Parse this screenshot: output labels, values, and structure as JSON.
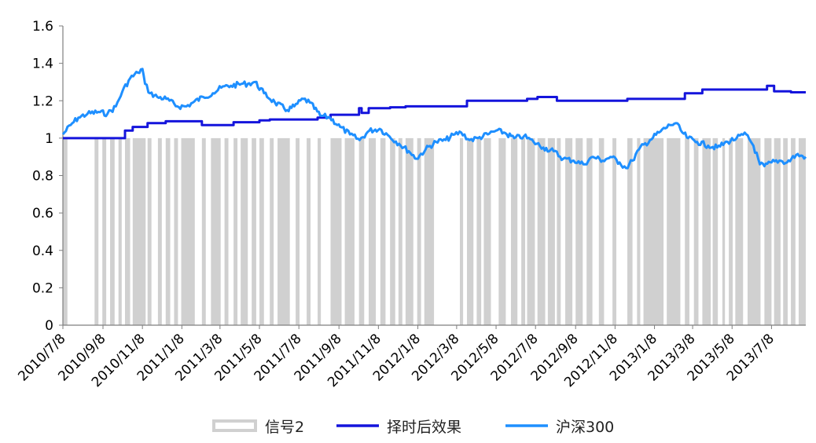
{
  "chart_data": {
    "type": "line",
    "title": "",
    "xlabel": "",
    "ylabel": "",
    "ylim": [
      0,
      1.6
    ],
    "yticks": [
      "0",
      "0.2",
      "0.4",
      "0.6",
      "0.8",
      "1",
      "1.2",
      "1.4",
      "1.6"
    ],
    "xticks": [
      "2010/7/8",
      "2010/9/8",
      "2010/11/8",
      "2011/1/8",
      "2011/3/8",
      "2011/5/8",
      "2011/7/8",
      "2011/9/8",
      "2011/11/8",
      "2012/1/8",
      "2012/3/8",
      "2012/5/8",
      "2012/7/8",
      "2012/9/8",
      "2012/11/8",
      "2013/1/8",
      "2013/3/8",
      "2013/5/8",
      "2013/7/8"
    ],
    "x_range": [
      "2010/7/8",
      "2013/8/30"
    ],
    "grid": false,
    "legend_position": "bottom",
    "colors": {
      "signal": "#d0d0d0",
      "timing": "#1414dc",
      "hs300": "#1e8fff"
    },
    "series": [
      {
        "name": "信号2",
        "kind": "step-bar",
        "value_when_on": 1,
        "on_intervals": [
          [
            "2010/7/8",
            "2010/7/15"
          ],
          [
            "2010/8/26",
            "2010/9/1"
          ],
          [
            "2010/9/7",
            "2010/9/13"
          ],
          [
            "2010/9/19",
            "2010/9/26"
          ],
          [
            "2010/10/2",
            "2010/10/7"
          ],
          [
            "2010/10/12",
            "2010/10/20"
          ],
          [
            "2010/10/24",
            "2010/11/13"
          ],
          [
            "2010/11/16",
            "2010/11/22"
          ],
          [
            "2010/12/2",
            "2010/12/8"
          ],
          [
            "2010/12/14",
            "2010/12/21"
          ],
          [
            "2010/12/27",
            "2011/1/2"
          ],
          [
            "2011/1/7",
            "2011/1/28"
          ],
          [
            "2011/2/8",
            "2011/2/14"
          ],
          [
            "2011/2/22",
            "2011/3/9"
          ],
          [
            "2011/3/15",
            "2011/3/21"
          ],
          [
            "2011/3/29",
            "2011/4/4"
          ],
          [
            "2011/4/9",
            "2011/4/20"
          ],
          [
            "2011/4/26",
            "2011/5/3"
          ],
          [
            "2011/5/8",
            "2011/5/15"
          ],
          [
            "2011/5/24",
            "2011/5/30"
          ],
          [
            "2011/6/5",
            "2011/6/24"
          ],
          [
            "2011/7/3",
            "2011/7/9"
          ],
          [
            "2011/7/20",
            "2011/7/26"
          ],
          [
            "2011/8/6",
            "2011/8/11"
          ],
          [
            "2011/8/26",
            "2011/9/12"
          ],
          [
            "2011/9/17",
            "2011/10/2"
          ],
          [
            "2011/10/9",
            "2011/10/17"
          ],
          [
            "2011/10/24",
            "2011/11/4"
          ],
          [
            "2011/11/11",
            "2011/11/19"
          ],
          [
            "2011/11/26",
            "2011/12/4"
          ],
          [
            "2011/12/9",
            "2011/12/15"
          ],
          [
            "2011/12/20",
            "2012/1/1"
          ],
          [
            "2012/1/7",
            "2012/1/13"
          ],
          [
            "2012/1/18",
            "2012/2/2"
          ],
          [
            "2012/3/13",
            "2012/3/18"
          ],
          [
            "2012/3/24",
            "2012/4/3"
          ],
          [
            "2012/4/8",
            "2012/4/15"
          ],
          [
            "2012/4/19",
            "2012/4/30"
          ],
          [
            "2012/5/12",
            "2012/5/23"
          ],
          [
            "2012/5/31",
            "2012/6/10"
          ],
          [
            "2012/6/16",
            "2012/6/22"
          ],
          [
            "2012/6/25",
            "2012/7/7"
          ],
          [
            "2012/7/11",
            "2012/7/23"
          ],
          [
            "2012/7/27",
            "2012/8/7"
          ],
          [
            "2012/8/10",
            "2012/8/16"
          ],
          [
            "2012/8/23",
            "2012/9/3"
          ],
          [
            "2012/9/8",
            "2012/9/19"
          ],
          [
            "2012/9/25",
            "2012/10/4"
          ],
          [
            "2012/10/14",
            "2012/10/22"
          ],
          [
            "2012/11/4",
            "2012/11/10"
          ],
          [
            "2012/11/27",
            "2012/12/5"
          ],
          [
            "2012/12/12",
            "2012/12/17"
          ],
          [
            "2012/12/22",
            "2013/1/22"
          ],
          [
            "2013/1/27",
            "2013/2/17"
          ],
          [
            "2013/2/24",
            "2013/3/3"
          ],
          [
            "2013/3/10",
            "2013/3/17"
          ],
          [
            "2013/3/23",
            "2013/4/5"
          ],
          [
            "2013/4/8",
            "2013/4/16"
          ],
          [
            "2013/4/23",
            "2013/4/27"
          ],
          [
            "2013/5/3",
            "2013/5/9"
          ],
          [
            "2013/5/13",
            "2013/5/25"
          ],
          [
            "2013/6/1",
            "2013/6/21"
          ],
          [
            "2013/6/27",
            "2013/7/8"
          ],
          [
            "2013/7/12",
            "2013/7/22"
          ],
          [
            "2013/7/26",
            "2013/8/2"
          ],
          [
            "2013/8/7",
            "2013/8/14"
          ],
          [
            "2013/8/19",
            "2013/8/30"
          ]
        ]
      },
      {
        "name": "择时后效果",
        "kind": "line",
        "x": [
          "2010/7/8",
          "2010/10/12",
          "2010/10/12",
          "2010/10/24",
          "2010/10/24",
          "2010/11/16",
          "2010/11/16",
          "2010/12/14",
          "2010/12/14",
          "2011/2/8",
          "2011/2/8",
          "2011/3/29",
          "2011/3/29",
          "2011/5/8",
          "2011/5/8",
          "2011/5/24",
          "2011/5/24",
          "2011/8/6",
          "2011/8/6",
          "2011/8/26",
          "2011/8/26",
          "2011/10/9",
          "2011/10/9",
          "2011/10/13",
          "2011/10/13",
          "2011/10/24",
          "2011/10/24",
          "2011/11/26",
          "2011/11/26",
          "2011/12/20",
          "2011/12/20",
          "2012/3/24",
          "2012/3/24",
          "2012/6/25",
          "2012/6/25",
          "2012/7/11",
          "2012/7/11",
          "2012/8/10",
          "2012/8/10",
          "2012/11/27",
          "2012/11/27",
          "2013/2/24",
          "2013/2/24",
          "2013/3/23",
          "2013/3/23",
          "2013/7/1",
          "2013/7/1",
          "2013/7/12",
          "2013/7/12",
          "2013/8/7",
          "2013/8/7",
          "2013/8/30"
        ],
        "values": [
          1.0,
          1.0,
          1.04,
          1.04,
          1.06,
          1.06,
          1.08,
          1.08,
          1.09,
          1.09,
          1.07,
          1.07,
          1.085,
          1.085,
          1.095,
          1.095,
          1.1,
          1.1,
          1.11,
          1.11,
          1.125,
          1.125,
          1.16,
          1.16,
          1.135,
          1.135,
          1.16,
          1.16,
          1.165,
          1.165,
          1.17,
          1.17,
          1.2,
          1.2,
          1.21,
          1.21,
          1.22,
          1.22,
          1.2,
          1.2,
          1.21,
          1.21,
          1.24,
          1.24,
          1.26,
          1.26,
          1.28,
          1.28,
          1.25,
          1.25,
          1.245,
          1.245
        ]
      },
      {
        "name": "沪深300",
        "kind": "line",
        "x": [
          "2010/7/8",
          "2010/7/20",
          "2010/8/1",
          "2010/8/15",
          "2010/9/1",
          "2010/9/15",
          "2010/9/28",
          "2010/10/8",
          "2010/10/20",
          "2010/11/1",
          "2010/11/8",
          "2010/11/12",
          "2010/11/20",
          "2010/12/1",
          "2010/12/15",
          "2011/1/1",
          "2011/1/15",
          "2011/1/25",
          "2011/2/10",
          "2011/2/25",
          "2011/3/10",
          "2011/3/25",
          "2011/4/10",
          "2011/4/20",
          "2011/5/1",
          "2011/5/15",
          "2011/6/1",
          "2011/6/20",
          "2011/7/1",
          "2011/7/15",
          "2011/7/25",
          "2011/8/10",
          "2011/8/25",
          "2011/9/10",
          "2011/9/25",
          "2011/10/10",
          "2011/10/25",
          "2011/11/10",
          "2011/11/25",
          "2011/12/10",
          "2011/12/25",
          "2012/1/6",
          "2012/1/20",
          "2012/2/5",
          "2012/2/20",
          "2012/3/5",
          "2012/3/15",
          "2012/3/28",
          "2012/4/10",
          "2012/4/25",
          "2012/5/8",
          "2012/5/20",
          "2012/6/5",
          "2012/6/20",
          "2012/7/5",
          "2012/7/20",
          "2012/8/5",
          "2012/8/20",
          "2012/9/5",
          "2012/9/20",
          "2012/10/5",
          "2012/10/20",
          "2012/11/1",
          "2012/11/15",
          "2012/11/25",
          "2012/12/5",
          "2012/12/15",
          "2013/1/1",
          "2013/1/15",
          "2013/2/1",
          "2013/2/10",
          "2013/2/20",
          "2013/3/1",
          "2013/3/15",
          "2013/4/1",
          "2013/4/15",
          "2013/5/1",
          "2013/5/15",
          "2013/5/30",
          "2013/6/10",
          "2013/6/20",
          "2013/6/27",
          "2013/7/8",
          "2013/7/20",
          "2013/8/1",
          "2013/8/15",
          "2013/8/30"
        ],
        "values": [
          1.02,
          1.07,
          1.11,
          1.13,
          1.14,
          1.13,
          1.17,
          1.25,
          1.32,
          1.35,
          1.37,
          1.29,
          1.24,
          1.22,
          1.21,
          1.17,
          1.17,
          1.19,
          1.22,
          1.24,
          1.27,
          1.28,
          1.29,
          1.29,
          1.3,
          1.24,
          1.19,
          1.15,
          1.17,
          1.21,
          1.19,
          1.12,
          1.11,
          1.06,
          1.02,
          0.99,
          1.04,
          1.05,
          1.01,
          0.97,
          0.93,
          0.89,
          0.94,
          0.98,
          0.99,
          1.02,
          1.03,
          0.99,
          1.0,
          1.02,
          1.04,
          1.03,
          1.0,
          1.01,
          0.98,
          0.95,
          0.93,
          0.89,
          0.88,
          0.86,
          0.9,
          0.88,
          0.9,
          0.87,
          0.84,
          0.88,
          0.94,
          0.99,
          1.03,
          1.07,
          1.08,
          1.03,
          1.0,
          0.98,
          0.96,
          0.95,
          0.98,
          1.0,
          1.02,
          0.96,
          0.86,
          0.85,
          0.87,
          0.88,
          0.87,
          0.91,
          0.9
        ]
      }
    ]
  }
}
